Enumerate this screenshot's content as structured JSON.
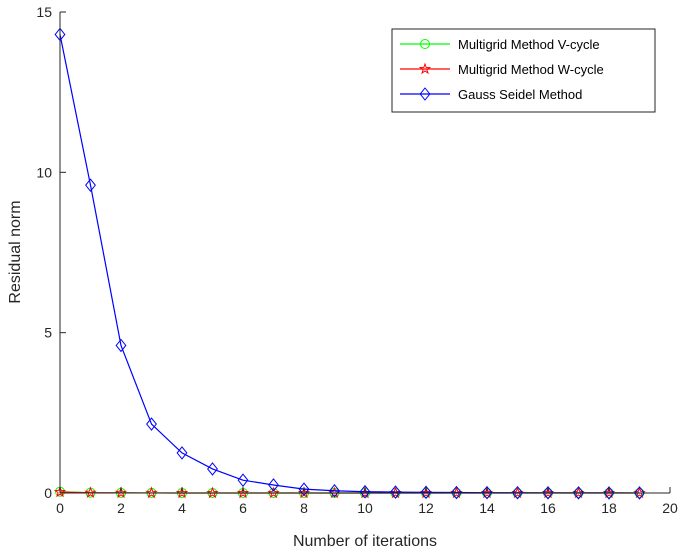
{
  "chart_data": {
    "type": "line",
    "title": "",
    "xlabel": "Number of iterations",
    "ylabel": "Residual norm",
    "xlim": [
      0,
      20
    ],
    "ylim": [
      0,
      15
    ],
    "x_ticks": [
      0,
      2,
      4,
      6,
      8,
      10,
      12,
      14,
      16,
      18,
      20
    ],
    "y_ticks": [
      0,
      5,
      10,
      15
    ],
    "grid": false,
    "legend_position": "top-right",
    "x": [
      0,
      1,
      2,
      3,
      4,
      5,
      6,
      7,
      8,
      9,
      10,
      11,
      12,
      13,
      14,
      15,
      16,
      17,
      18,
      19
    ],
    "series": [
      {
        "name": "Multigrid Method V-cycle",
        "color": "#00ff00",
        "marker": "circle",
        "values": [
          0.04,
          0.01,
          0.005,
          0.002,
          0.001,
          0.001,
          0.0,
          0.0,
          0.0,
          0.0,
          0.0,
          0.0,
          0.0,
          0.0,
          0.0,
          0.0,
          0.0,
          0.0,
          0.0,
          0.0
        ]
      },
      {
        "name": "Multigrid Method W-cycle",
        "color": "#ff0000",
        "marker": "star",
        "values": [
          0.03,
          0.008,
          0.004,
          0.002,
          0.001,
          0.0,
          0.0,
          0.0,
          0.0,
          0.0,
          0.0,
          0.0,
          0.0,
          0.0,
          0.0,
          0.0,
          0.0,
          0.0,
          0.0,
          0.0
        ]
      },
      {
        "name": "Gauss Seidel Method",
        "color": "#0000ff",
        "marker": "diamond",
        "values": [
          14.3,
          9.6,
          4.6,
          2.15,
          1.25,
          0.75,
          0.4,
          0.25,
          0.12,
          0.07,
          0.04,
          0.03,
          0.02,
          0.015,
          0.01,
          0.008,
          0.006,
          0.004,
          0.003,
          0.002
        ]
      }
    ]
  }
}
